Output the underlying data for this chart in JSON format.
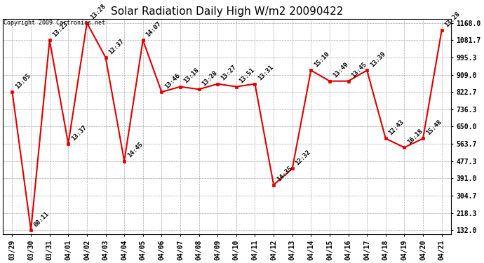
{
  "title": "Solar Radiation Daily High W/m2 20090422",
  "copyright": "Copyright 2009 Cartronics.net",
  "dates": [
    "03/29",
    "03/30",
    "03/31",
    "04/01",
    "04/02",
    "04/03",
    "04/04",
    "04/05",
    "04/06",
    "04/07",
    "04/08",
    "04/09",
    "04/10",
    "04/11",
    "04/12",
    "04/13",
    "04/14",
    "04/15",
    "04/16",
    "04/17",
    "04/18",
    "04/19",
    "04/20",
    "04/21"
  ],
  "values": [
    822.7,
    132.0,
    1081.7,
    563.7,
    1168.0,
    995.3,
    477.3,
    1081.7,
    822.7,
    849.0,
    836.0,
    863.0,
    849.0,
    863.0,
    358.0,
    440.0,
    931.0,
    877.0,
    877.0,
    931.0,
    590.0,
    545.0,
    590.0,
    1130.0
  ],
  "labels": [
    "13:05",
    "08:11",
    "13:23",
    "13:37",
    "13:28",
    "12:37",
    "14:45",
    "14:07",
    "13:46",
    "13:18",
    "13:28",
    "13:27",
    "13:51",
    "13:31",
    "14:35",
    "12:32",
    "15:10",
    "13:49",
    "13:45",
    "13:39",
    "12:43",
    "16:18",
    "15:48",
    "13:28"
  ],
  "ymin": 132.0,
  "ymax": 1168.0,
  "yticks": [
    132.0,
    218.3,
    304.7,
    391.0,
    477.3,
    563.7,
    650.0,
    736.3,
    822.7,
    909.0,
    995.3,
    1081.7,
    1168.0
  ],
  "line_color": "#dd0000",
  "marker_color": "#dd0000",
  "bg_color": "#ffffff",
  "grid_color": "#aaaaaa",
  "title_fontsize": 11,
  "annot_fontsize": 6.5,
  "tick_fontsize": 7,
  "copyright_fontsize": 6
}
